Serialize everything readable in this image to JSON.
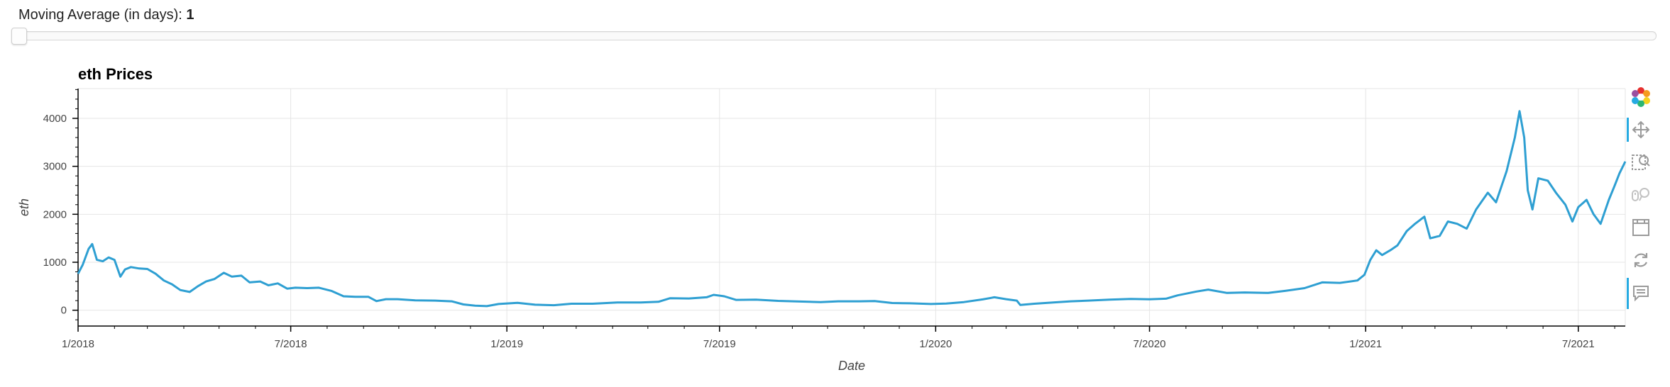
{
  "slider": {
    "title_label": "Moving Average (in days): ",
    "value": "1",
    "min": 1,
    "current": 1
  },
  "toolbar": {
    "tools": [
      "bokeh-logo-icon",
      "pan-icon",
      "box-zoom-icon",
      "wheel-zoom-icon",
      "save-icon",
      "reset-icon",
      "hover-icon"
    ],
    "active_tools": [
      "pan-icon",
      "hover-icon"
    ],
    "accent_color": "#26aae1"
  },
  "chart_data": {
    "type": "line",
    "title": "eth Prices",
    "xlabel": "Date",
    "ylabel": "eth",
    "line_color": "#2e9fd2",
    "grid": true,
    "x_range": [
      "2018-01-01",
      "2021-08-10"
    ],
    "y_range": [
      -330,
      4620
    ],
    "x_ticks": [
      {
        "date": "2018-01-01",
        "label": "1/2018"
      },
      {
        "date": "2018-07-01",
        "label": "7/2018"
      },
      {
        "date": "2019-01-01",
        "label": "1/2019"
      },
      {
        "date": "2019-07-01",
        "label": "7/2019"
      },
      {
        "date": "2020-01-01",
        "label": "1/2020"
      },
      {
        "date": "2020-07-01",
        "label": "7/2020"
      },
      {
        "date": "2021-01-01",
        "label": "1/2021"
      },
      {
        "date": "2021-07-01",
        "label": "7/2021"
      }
    ],
    "y_ticks": [
      0,
      1000,
      2000,
      3000,
      4000
    ],
    "series": [
      {
        "points": [
          [
            "2018-01-01",
            760
          ],
          [
            "2018-01-05",
            950
          ],
          [
            "2018-01-10",
            1280
          ],
          [
            "2018-01-13",
            1380
          ],
          [
            "2018-01-17",
            1050
          ],
          [
            "2018-01-22",
            1020
          ],
          [
            "2018-01-27",
            1100
          ],
          [
            "2018-02-01",
            1050
          ],
          [
            "2018-02-06",
            700
          ],
          [
            "2018-02-10",
            850
          ],
          [
            "2018-02-15",
            900
          ],
          [
            "2018-02-22",
            870
          ],
          [
            "2018-03-01",
            860
          ],
          [
            "2018-03-08",
            760
          ],
          [
            "2018-03-15",
            620
          ],
          [
            "2018-03-22",
            540
          ],
          [
            "2018-03-29",
            420
          ],
          [
            "2018-04-06",
            380
          ],
          [
            "2018-04-13",
            500
          ],
          [
            "2018-04-20",
            600
          ],
          [
            "2018-04-27",
            650
          ],
          [
            "2018-05-05",
            780
          ],
          [
            "2018-05-12",
            700
          ],
          [
            "2018-05-20",
            720
          ],
          [
            "2018-05-27",
            580
          ],
          [
            "2018-06-05",
            600
          ],
          [
            "2018-06-12",
            520
          ],
          [
            "2018-06-20",
            560
          ],
          [
            "2018-06-28",
            450
          ],
          [
            "2018-07-05",
            470
          ],
          [
            "2018-07-15",
            460
          ],
          [
            "2018-07-25",
            470
          ],
          [
            "2018-08-05",
            400
          ],
          [
            "2018-08-15",
            290
          ],
          [
            "2018-08-25",
            280
          ],
          [
            "2018-09-05",
            280
          ],
          [
            "2018-09-12",
            190
          ],
          [
            "2018-09-20",
            230
          ],
          [
            "2018-09-30",
            230
          ],
          [
            "2018-10-15",
            205
          ],
          [
            "2018-11-01",
            200
          ],
          [
            "2018-11-15",
            185
          ],
          [
            "2018-11-25",
            120
          ],
          [
            "2018-12-05",
            95
          ],
          [
            "2018-12-15",
            85
          ],
          [
            "2018-12-25",
            130
          ],
          [
            "2019-01-10",
            155
          ],
          [
            "2019-01-25",
            115
          ],
          [
            "2019-02-10",
            105
          ],
          [
            "2019-02-25",
            135
          ],
          [
            "2019-03-15",
            135
          ],
          [
            "2019-04-05",
            160
          ],
          [
            "2019-04-25",
            160
          ],
          [
            "2019-05-10",
            175
          ],
          [
            "2019-05-20",
            250
          ],
          [
            "2019-06-05",
            245
          ],
          [
            "2019-06-20",
            270
          ],
          [
            "2019-06-26",
            320
          ],
          [
            "2019-07-05",
            290
          ],
          [
            "2019-07-15",
            215
          ],
          [
            "2019-08-01",
            220
          ],
          [
            "2019-08-20",
            195
          ],
          [
            "2019-09-10",
            180
          ],
          [
            "2019-09-25",
            170
          ],
          [
            "2019-10-10",
            185
          ],
          [
            "2019-10-28",
            185
          ],
          [
            "2019-11-10",
            190
          ],
          [
            "2019-11-25",
            150
          ],
          [
            "2019-12-10",
            145
          ],
          [
            "2019-12-28",
            130
          ],
          [
            "2020-01-10",
            140
          ],
          [
            "2020-01-25",
            170
          ],
          [
            "2020-02-10",
            225
          ],
          [
            "2020-02-20",
            270
          ],
          [
            "2020-03-01",
            230
          ],
          [
            "2020-03-10",
            200
          ],
          [
            "2020-03-13",
            110
          ],
          [
            "2020-03-25",
            135
          ],
          [
            "2020-04-10",
            160
          ],
          [
            "2020-04-25",
            185
          ],
          [
            "2020-05-10",
            200
          ],
          [
            "2020-05-28",
            220
          ],
          [
            "2020-06-15",
            235
          ],
          [
            "2020-07-01",
            228
          ],
          [
            "2020-07-15",
            240
          ],
          [
            "2020-07-25",
            310
          ],
          [
            "2020-08-10",
            390
          ],
          [
            "2020-08-20",
            430
          ],
          [
            "2020-09-05",
            360
          ],
          [
            "2020-09-20",
            370
          ],
          [
            "2020-10-10",
            360
          ],
          [
            "2020-10-25",
            405
          ],
          [
            "2020-11-10",
            460
          ],
          [
            "2020-11-25",
            580
          ],
          [
            "2020-12-10",
            570
          ],
          [
            "2020-12-25",
            620
          ],
          [
            "2020-12-31",
            740
          ],
          [
            "2021-01-05",
            1050
          ],
          [
            "2021-01-10",
            1250
          ],
          [
            "2021-01-15",
            1150
          ],
          [
            "2021-01-22",
            1250
          ],
          [
            "2021-01-28",
            1350
          ],
          [
            "2021-02-05",
            1650
          ],
          [
            "2021-02-12",
            1800
          ],
          [
            "2021-02-20",
            1950
          ],
          [
            "2021-02-25",
            1500
          ],
          [
            "2021-03-05",
            1550
          ],
          [
            "2021-03-12",
            1850
          ],
          [
            "2021-03-20",
            1800
          ],
          [
            "2021-03-28",
            1700
          ],
          [
            "2021-04-05",
            2100
          ],
          [
            "2021-04-15",
            2450
          ],
          [
            "2021-04-22",
            2250
          ],
          [
            "2021-05-01",
            2900
          ],
          [
            "2021-05-08",
            3600
          ],
          [
            "2021-05-12",
            4150
          ],
          [
            "2021-05-16",
            3600
          ],
          [
            "2021-05-19",
            2500
          ],
          [
            "2021-05-23",
            2100
          ],
          [
            "2021-05-28",
            2750
          ],
          [
            "2021-06-05",
            2700
          ],
          [
            "2021-06-12",
            2450
          ],
          [
            "2021-06-20",
            2200
          ],
          [
            "2021-06-26",
            1850
          ],
          [
            "2021-07-01",
            2150
          ],
          [
            "2021-07-08",
            2300
          ],
          [
            "2021-07-14",
            2000
          ],
          [
            "2021-07-20",
            1800
          ],
          [
            "2021-07-27",
            2300
          ],
          [
            "2021-08-01",
            2600
          ],
          [
            "2021-08-05",
            2850
          ],
          [
            "2021-08-10",
            3100
          ]
        ]
      }
    ]
  }
}
